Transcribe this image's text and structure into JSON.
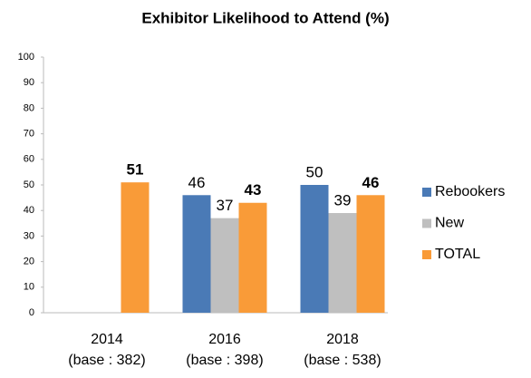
{
  "chart_data": {
    "type": "bar",
    "title": "Exhibitor Likelihood to Attend (%)",
    "categories": [
      "2014",
      "2016",
      "2018"
    ],
    "category_subtitles": [
      "(base : 382)",
      "(base : 398)",
      "(base : 538)"
    ],
    "series": [
      {
        "name": "Rebookers",
        "color": "#4a7ab6",
        "values": [
          null,
          46,
          50
        ]
      },
      {
        "name": "New",
        "color": "#bfbfbf",
        "values": [
          null,
          37,
          39
        ]
      },
      {
        "name": "TOTAL",
        "color": "#f99b38",
        "values": [
          51,
          43,
          46
        ],
        "bold_labels": true
      }
    ],
    "ylim": [
      0,
      100
    ],
    "yticks": [
      0,
      10,
      20,
      30,
      40,
      50,
      60,
      70,
      80,
      90,
      100
    ],
    "grid": false,
    "legend": "right"
  }
}
